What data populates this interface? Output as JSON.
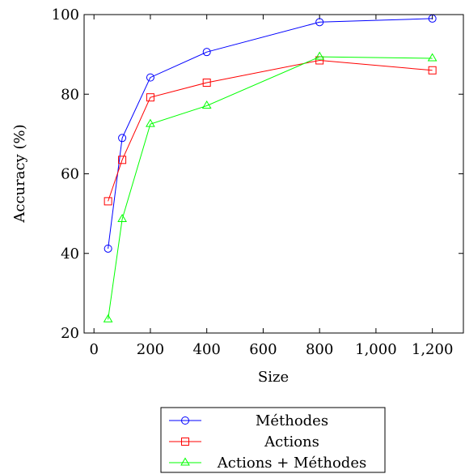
{
  "chart_data": {
    "type": "line",
    "title": "",
    "xlabel": "Size",
    "ylabel": "Accuracy (%)",
    "xlim": [
      -35,
      1310
    ],
    "ylim": [
      20,
      100
    ],
    "xticks": [
      0,
      200,
      400,
      600,
      800,
      1000,
      1200
    ],
    "xtick_labels": [
      "0",
      "200",
      "400",
      "600",
      "800",
      "1,000",
      "1,200"
    ],
    "yticks": [
      20,
      40,
      60,
      80,
      100
    ],
    "ytick_labels": [
      "20",
      "40",
      "60",
      "80",
      "100"
    ],
    "grid": false,
    "legend": "bottom-center",
    "series": [
      {
        "name": "Méthodes",
        "color": "#0000ff",
        "marker": "circle",
        "x": [
          50,
          100,
          200,
          400,
          800,
          1200
        ],
        "y": [
          41.2,
          69.0,
          84.2,
          90.6,
          98.1,
          99.0
        ]
      },
      {
        "name": "Actions",
        "color": "#ff0000",
        "marker": "square",
        "x": [
          50,
          100,
          200,
          400,
          800,
          1200
        ],
        "y": [
          53.1,
          63.5,
          79.2,
          82.9,
          88.5,
          86.0
        ]
      },
      {
        "name": "Actions + Méthodes",
        "color": "#00ff00",
        "marker": "triangle",
        "x": [
          50,
          100,
          200,
          400,
          800,
          1200
        ],
        "y": [
          23.4,
          48.6,
          72.5,
          77.1,
          89.4,
          89.0
        ]
      }
    ]
  }
}
